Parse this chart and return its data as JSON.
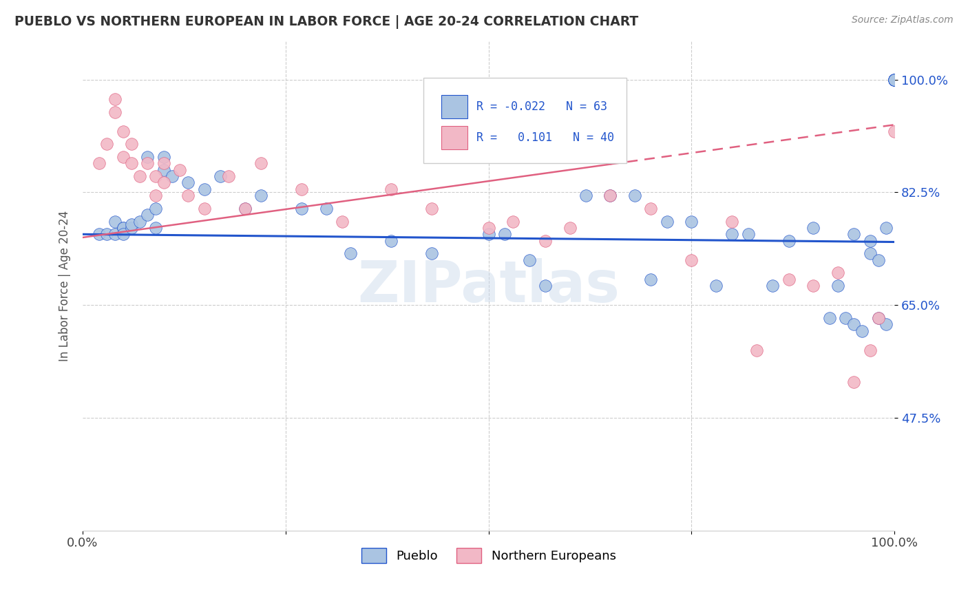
{
  "title": "PUEBLO VS NORTHERN EUROPEAN IN LABOR FORCE | AGE 20-24 CORRELATION CHART",
  "source": "Source: ZipAtlas.com",
  "ylabel": "In Labor Force | Age 20-24",
  "xlim": [
    0.0,
    1.0
  ],
  "ylim": [
    0.3,
    1.06
  ],
  "ytick_positions": [
    0.475,
    0.65,
    0.825,
    1.0
  ],
  "ytick_labels": [
    "47.5%",
    "65.0%",
    "82.5%",
    "100.0%"
  ],
  "pueblo_R": -0.022,
  "pueblo_N": 63,
  "northern_R": 0.101,
  "northern_N": 40,
  "pueblo_color": "#aac4e2",
  "northern_color": "#f2b8c6",
  "pueblo_line_color": "#2255cc",
  "northern_line_color": "#e06080",
  "background_color": "#ffffff",
  "pueblo_x": [
    0.02,
    0.03,
    0.04,
    0.04,
    0.05,
    0.05,
    0.05,
    0.06,
    0.06,
    0.07,
    0.08,
    0.08,
    0.09,
    0.09,
    0.1,
    0.1,
    0.11,
    0.13,
    0.15,
    0.17,
    0.2,
    0.22,
    0.27,
    0.3,
    0.33,
    0.38,
    0.43,
    0.5,
    0.52,
    0.55,
    0.57,
    0.62,
    0.65,
    0.68,
    0.7,
    0.72,
    0.75,
    0.78,
    0.8,
    0.82,
    0.85,
    0.87,
    0.9,
    0.92,
    0.93,
    0.94,
    0.95,
    0.95,
    0.96,
    0.97,
    0.97,
    0.98,
    0.98,
    0.99,
    0.99,
    1.0,
    1.0,
    1.0,
    1.0,
    1.0,
    1.0,
    1.0,
    1.0
  ],
  "pueblo_y": [
    0.76,
    0.76,
    0.76,
    0.78,
    0.77,
    0.77,
    0.76,
    0.77,
    0.775,
    0.78,
    0.79,
    0.88,
    0.77,
    0.8,
    0.88,
    0.86,
    0.85,
    0.84,
    0.83,
    0.85,
    0.8,
    0.82,
    0.8,
    0.8,
    0.73,
    0.75,
    0.73,
    0.76,
    0.76,
    0.72,
    0.68,
    0.82,
    0.82,
    0.82,
    0.69,
    0.78,
    0.78,
    0.68,
    0.76,
    0.76,
    0.68,
    0.75,
    0.77,
    0.63,
    0.68,
    0.63,
    0.76,
    0.62,
    0.61,
    0.75,
    0.73,
    0.72,
    0.63,
    0.77,
    0.62,
    1.0,
    1.0,
    1.0,
    1.0,
    1.0,
    1.0,
    1.0,
    1.0
  ],
  "northern_x": [
    0.02,
    0.03,
    0.04,
    0.04,
    0.05,
    0.05,
    0.06,
    0.06,
    0.07,
    0.08,
    0.09,
    0.09,
    0.1,
    0.1,
    0.12,
    0.13,
    0.15,
    0.18,
    0.2,
    0.22,
    0.27,
    0.32,
    0.38,
    0.43,
    0.53,
    0.57,
    0.65,
    0.7,
    0.75,
    0.8,
    0.83,
    0.87,
    0.9,
    0.93,
    0.95,
    0.97,
    0.98,
    1.0,
    0.5,
    0.6
  ],
  "northern_y": [
    0.87,
    0.9,
    0.95,
    0.97,
    0.92,
    0.88,
    0.9,
    0.87,
    0.85,
    0.87,
    0.82,
    0.85,
    0.87,
    0.84,
    0.86,
    0.82,
    0.8,
    0.85,
    0.8,
    0.87,
    0.83,
    0.78,
    0.83,
    0.8,
    0.78,
    0.75,
    0.82,
    0.8,
    0.72,
    0.78,
    0.58,
    0.69,
    0.68,
    0.7,
    0.53,
    0.58,
    0.63,
    0.92,
    0.77,
    0.77
  ]
}
